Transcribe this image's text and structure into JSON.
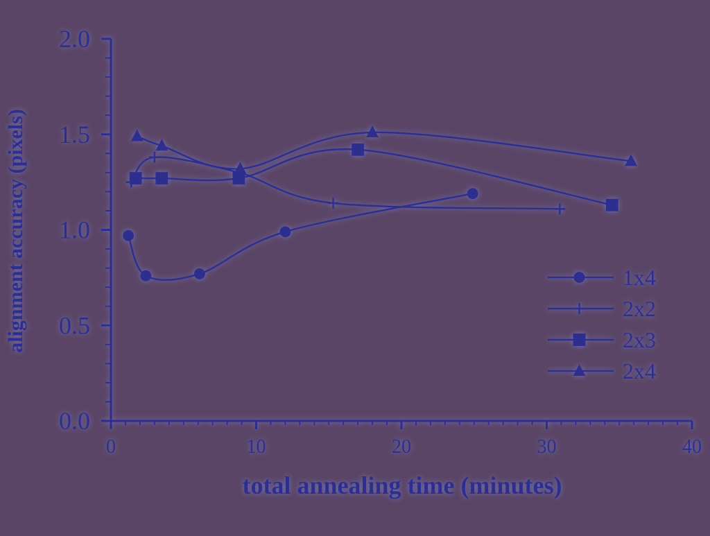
{
  "colors": {
    "background": "#5a4566",
    "ink": "#2e2f8e",
    "glow": "#8f9cff"
  },
  "chart_data": {
    "type": "line",
    "title": "",
    "xlabel": "total annealing time (minutes)",
    "ylabel": "alignment accuracy (pixels)",
    "xlim": [
      0,
      40
    ],
    "ylim": [
      0,
      2
    ],
    "x_ticks": [
      0,
      10,
      20,
      30,
      40
    ],
    "x_tick_labels": [
      "0",
      "10",
      "20",
      "30",
      "40"
    ],
    "y_ticks": [
      0,
      0.5,
      1,
      1.5,
      2
    ],
    "y_tick_labels": [
      "0.0",
      "0.5",
      "1.0",
      "1.5",
      "2.0"
    ],
    "legend_position": "right",
    "grid": false,
    "series": [
      {
        "name": "1x4",
        "marker": "circle",
        "x": [
          1.2,
          2.4,
          6.1,
          12.0,
          24.9
        ],
        "y": [
          0.97,
          0.76,
          0.77,
          0.99,
          1.19
        ]
      },
      {
        "name": "2x2",
        "marker": "plus",
        "x": [
          1.4,
          3.0,
          8.8,
          15.3,
          30.9
        ],
        "y": [
          1.25,
          1.38,
          1.3,
          1.14,
          1.11
        ]
      },
      {
        "name": "2x3",
        "marker": "square",
        "x": [
          1.7,
          3.5,
          8.8,
          17.0,
          34.5
        ],
        "y": [
          1.27,
          1.27,
          1.27,
          1.42,
          1.13
        ]
      },
      {
        "name": "2x4",
        "marker": "triangle",
        "x": [
          1.8,
          3.5,
          8.9,
          18.0,
          35.8
        ],
        "y": [
          1.49,
          1.44,
          1.32,
          1.51,
          1.36
        ]
      }
    ]
  }
}
